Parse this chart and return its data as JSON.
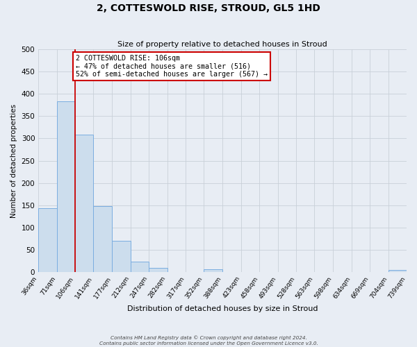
{
  "title": "2, COTTESWOLD RISE, STROUD, GL5 1HD",
  "subtitle": "Size of property relative to detached houses in Stroud",
  "xlabel": "Distribution of detached houses by size in Stroud",
  "ylabel": "Number of detached properties",
  "bin_edges": [
    36,
    71,
    106,
    141,
    177,
    212,
    247,
    282,
    317,
    352,
    388,
    423,
    458,
    493,
    528,
    563,
    598,
    634,
    669,
    704,
    739
  ],
  "bin_heights": [
    143,
    383,
    308,
    148,
    70,
    23,
    9,
    0,
    0,
    6,
    0,
    0,
    0,
    0,
    0,
    0,
    0,
    0,
    0,
    4
  ],
  "tick_labels": [
    "36sqm",
    "71sqm",
    "106sqm",
    "141sqm",
    "177sqm",
    "212sqm",
    "247sqm",
    "282sqm",
    "317sqm",
    "352sqm",
    "388sqm",
    "423sqm",
    "458sqm",
    "493sqm",
    "528sqm",
    "563sqm",
    "598sqm",
    "634sqm",
    "669sqm",
    "704sqm",
    "739sqm"
  ],
  "property_size": 106,
  "bar_color": "#ccdded",
  "bar_edge_color": "#7aade0",
  "vline_color": "#cc0000",
  "vline_x": 106,
  "annotation_text": "2 COTTESWOLD RISE: 106sqm\n← 47% of detached houses are smaller (516)\n52% of semi-detached houses are larger (567) →",
  "annotation_box_color": "#ffffff",
  "annotation_box_edge_color": "#cc0000",
  "ylim": [
    0,
    500
  ],
  "yticks": [
    0,
    50,
    100,
    150,
    200,
    250,
    300,
    350,
    400,
    450,
    500
  ],
  "grid_color": "#c8d0d8",
  "background_color": "#e8edf4",
  "footer_line1": "Contains HM Land Registry data © Crown copyright and database right 2024.",
  "footer_line2": "Contains public sector information licensed under the Open Government Licence v3.0."
}
